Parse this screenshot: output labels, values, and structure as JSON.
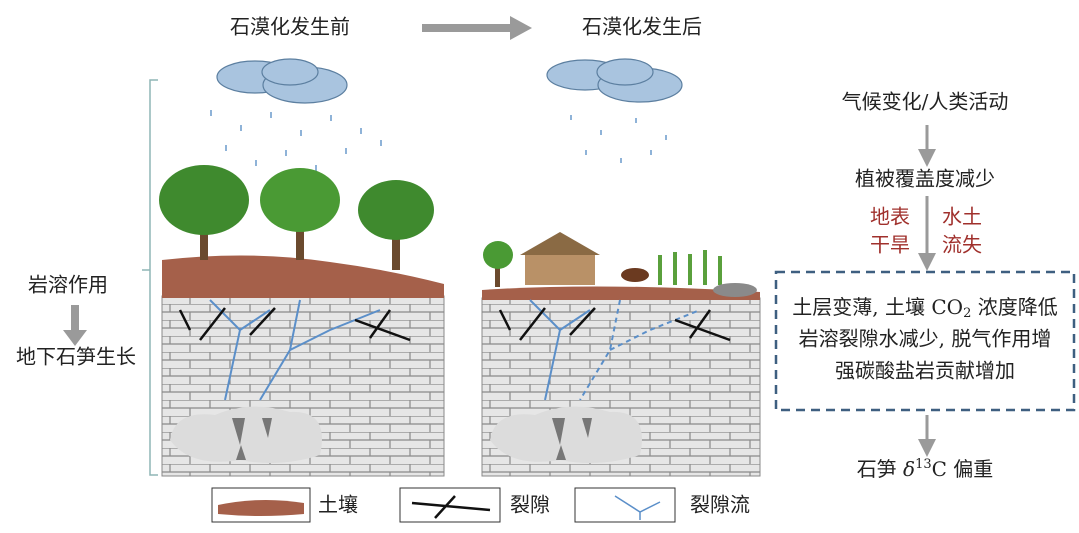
{
  "header": {
    "before": "石漠化发生前",
    "after": "石漠化发生后"
  },
  "left": {
    "process": "岩溶作用",
    "result": "地下石笋生长"
  },
  "flow": {
    "cause": "气候变化/人类活动",
    "effect": "植被覆盖度减少",
    "left_effect": [
      "地表",
      "干旱"
    ],
    "right_effect": [
      "水土",
      "流失"
    ],
    "box": [
      {
        "before": "土层变薄, 土壤 CO",
        "sub": "2",
        "after": " 浓度降低"
      },
      {
        "text": "岩溶裂隙水减少, 脱气作用增"
      },
      {
        "text": "强碳酸盐岩贡献增加"
      }
    ],
    "result": {
      "before": "石笋 ",
      "italic": "δ",
      "sup": "13",
      "after": "C 偏重"
    }
  },
  "legend": {
    "soil": "土壤",
    "fissure": "裂隙",
    "fissure_flow": "裂隙流"
  }
}
